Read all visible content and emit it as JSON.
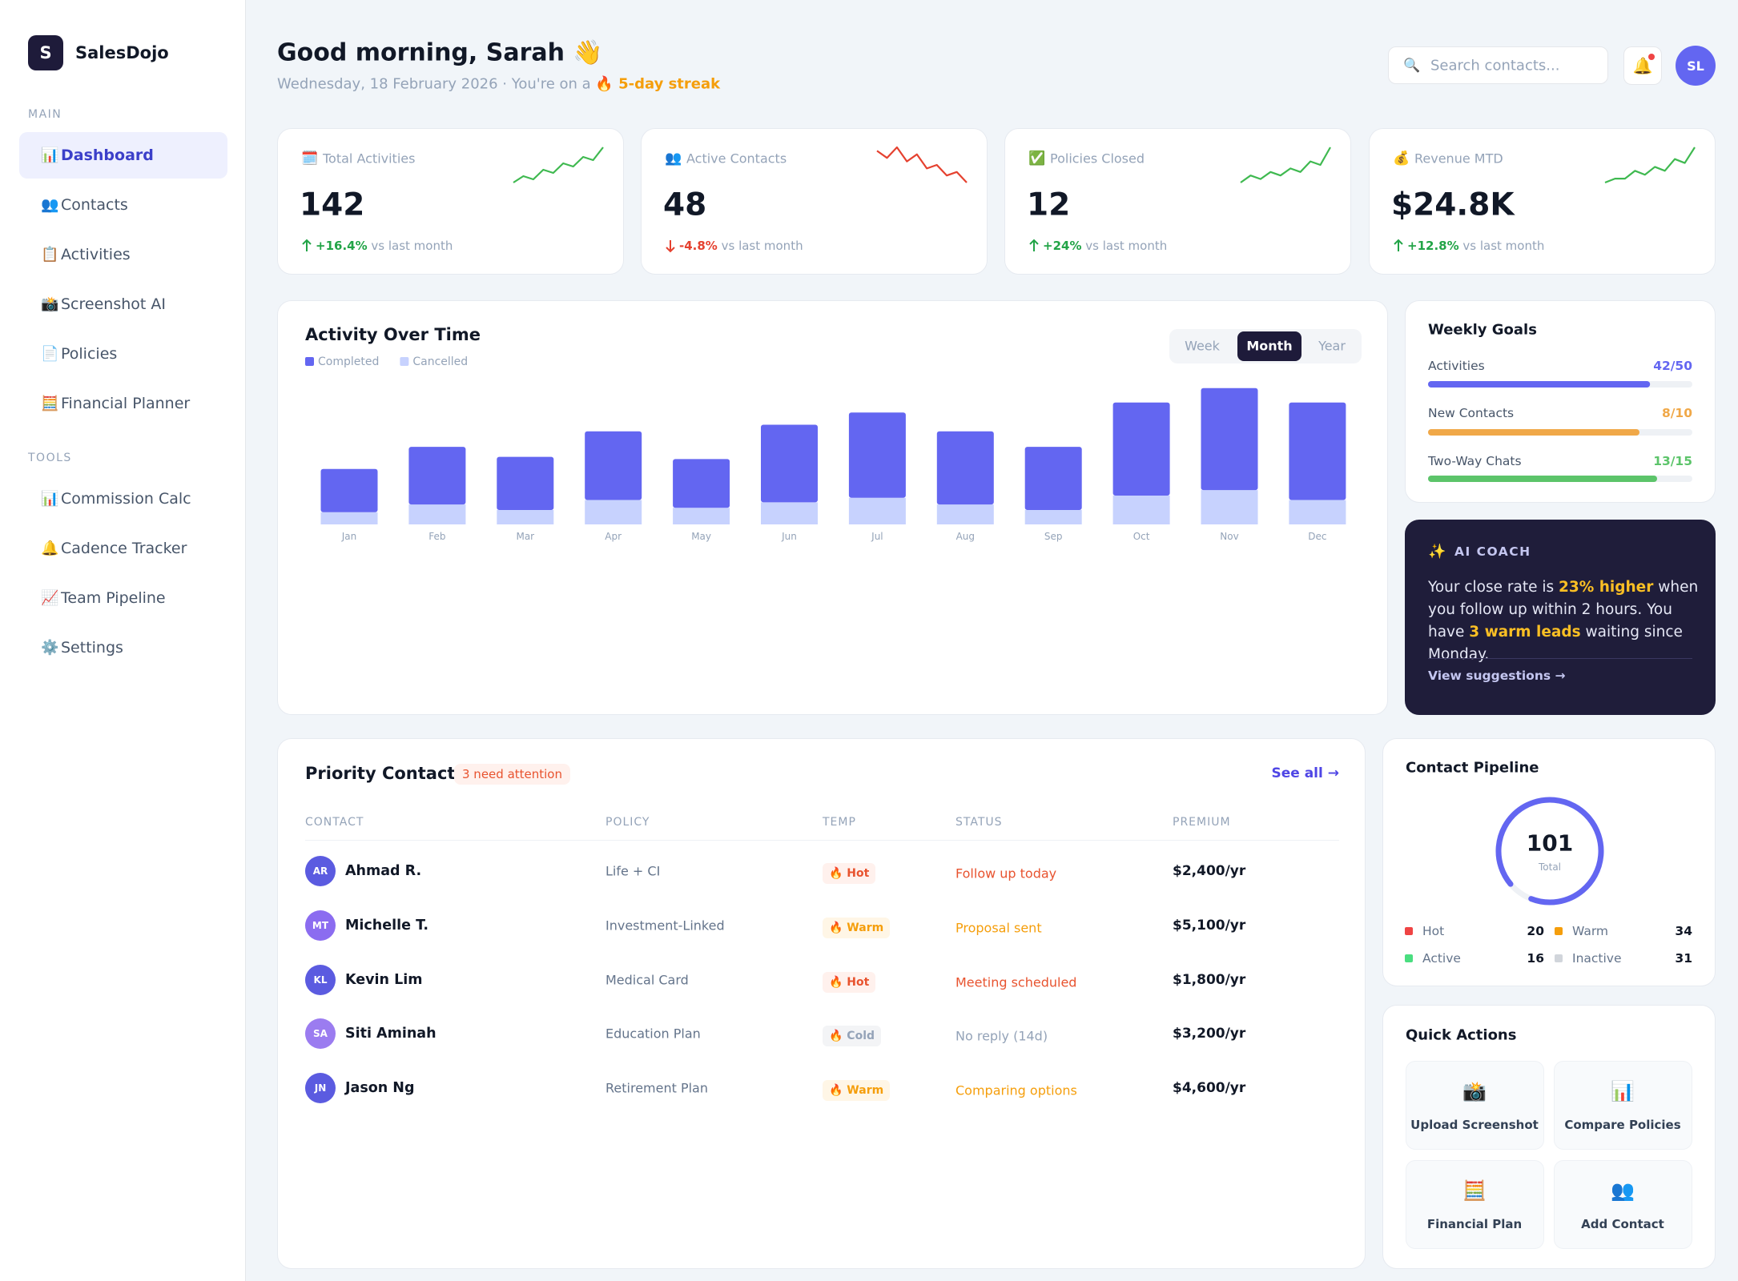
{
  "sidebar": {
    "logo_letter": "S",
    "brand": "SalesDojo",
    "sections": [
      {
        "title": "MAIN",
        "items": [
          {
            "icon": "📊",
            "label": "Dashboard",
            "active": true
          },
          {
            "icon": "👥",
            "label": "Contacts"
          },
          {
            "icon": "📋",
            "label": "Activities"
          },
          {
            "icon": "📸",
            "label": "Screenshot AI"
          },
          {
            "icon": "📄",
            "label": "Policies"
          },
          {
            "icon": "🧮",
            "label": "Financial Planner"
          }
        ]
      },
      {
        "title": "TOOLS",
        "items": [
          {
            "icon": "📊",
            "label": "Commission Calc"
          },
          {
            "icon": "🔔",
            "label": "Cadence Tracker"
          },
          {
            "icon": "📈",
            "label": "Team Pipeline"
          },
          {
            "icon": "⚙️",
            "label": "Settings"
          }
        ]
      }
    ]
  },
  "header": {
    "greeting": "Good morning, Sarah 👋",
    "date": "Wednesday, 18 February 2026 · You're on a",
    "streak": "🔥 5-day streak",
    "search_icon": "🔍",
    "search_placeholder": "Search contacts...",
    "bell": "🔔",
    "avatar": "SL"
  },
  "kpis": [
    {
      "icon": "🗓️",
      "label": "Total Activities",
      "value": "142",
      "change": "+16.4%",
      "note": "vs last month",
      "trend": "up",
      "sparkline": [
        3,
        5,
        4,
        7,
        6,
        9,
        8,
        11,
        10,
        14
      ]
    },
    {
      "icon": "👥",
      "label": "Active Contacts",
      "value": "48",
      "change": "-4.8%",
      "note": "vs last month",
      "trend": "down",
      "sparkline": [
        12,
        10,
        13,
        9,
        11,
        7,
        8,
        5,
        6,
        3
      ]
    },
    {
      "icon": "✅",
      "label": "Policies Closed",
      "value": "12",
      "change": "+24%",
      "note": "vs last month",
      "trend": "up",
      "sparkline": [
        2,
        4,
        3,
        5,
        4,
        6,
        5,
        8,
        7,
        12
      ]
    },
    {
      "icon": "💰",
      "label": "Revenue MTD",
      "value": "$24.8K",
      "change": "+12.8%",
      "note": "vs last month",
      "trend": "up",
      "sparkline": [
        3,
        4,
        4,
        6,
        5,
        7,
        6,
        9,
        8,
        12
      ]
    }
  ],
  "chart_data": {
    "type": "bar",
    "stacked": true,
    "title": "Activity Over Time",
    "periods": [
      "Week",
      "Month",
      "Year"
    ],
    "active_period": 1,
    "categories": [
      "Jan",
      "Feb",
      "Mar",
      "Apr",
      "May",
      "Jun",
      "Jul",
      "Aug",
      "Sep",
      "Oct",
      "Nov",
      "Dec"
    ],
    "series": [
      {
        "name": "Completed",
        "color": "#6366f1",
        "values": [
          39,
          52,
          48,
          62,
          44,
          70,
          77,
          66,
          57,
          84,
          92,
          88
        ]
      },
      {
        "name": "Cancelled",
        "color": "#c7d2fe",
        "values": [
          11,
          18,
          13,
          22,
          15,
          20,
          24,
          18,
          13,
          26,
          31,
          22
        ]
      }
    ]
  },
  "weekly_goals": {
    "title": "Weekly Goals",
    "goals": [
      {
        "label": "Activities",
        "progress": "42/50",
        "value": 42,
        "target": 50,
        "color": "#6366f1"
      },
      {
        "label": "New Contacts",
        "progress": "8/10",
        "value": 8,
        "target": 10,
        "color": "#f0a848"
      },
      {
        "label": "Two-Way Chats",
        "progress": "13/15",
        "value": 13,
        "target": 15,
        "color": "#5cc46a"
      }
    ]
  },
  "ai_coach": {
    "icon": "✨",
    "title": "AI COACH",
    "message": [
      {
        "text": "Your close rate is "
      },
      {
        "text": "23% higher",
        "highlight": true
      },
      {
        "text": " when you follow up within 2 hours. You have "
      },
      {
        "text": "3 warm leads",
        "highlight": true
      },
      {
        "text": " waiting since Monday."
      }
    ],
    "link": "View suggestions →"
  },
  "priority_contacts": {
    "title": "Priority Contacts",
    "badge": "3 need attention",
    "see_all": "See all →",
    "columns": [
      "CONTACT",
      "POLICY",
      "TEMP",
      "STATUS",
      "PREMIUM"
    ],
    "rows": [
      {
        "initials": "AR",
        "name": "Ahmad R.",
        "policy": "Life + CI",
        "temp": "🔥 Hot",
        "level": "hot",
        "status": "Follow up today",
        "premium": "$2,400/yr"
      },
      {
        "initials": "MT",
        "name": "Michelle T.",
        "policy": "Investment-Linked",
        "temp": "🔥 Warm",
        "level": "warm",
        "status": "Proposal sent",
        "premium": "$5,100/yr"
      },
      {
        "initials": "KL",
        "name": "Kevin Lim",
        "policy": "Medical Card",
        "temp": "🔥 Hot",
        "level": "hot",
        "status": "Meeting scheduled",
        "premium": "$1,800/yr"
      },
      {
        "initials": "SA",
        "name": "Siti Aminah",
        "policy": "Education Plan",
        "temp": "🔥 Cold",
        "level": "cold",
        "status": "No reply (14d)",
        "premium": "$3,200/yr"
      },
      {
        "initials": "JN",
        "name": "Jason Ng",
        "policy": "Retirement Plan",
        "temp": "🔥 Warm",
        "level": "warm",
        "status": "Comparing options",
        "premium": "$4,600/yr"
      }
    ]
  },
  "pipeline": {
    "title": "Contact Pipeline",
    "total": 101,
    "total_label": "Total",
    "segments": [
      {
        "name": "Hot",
        "value": 20,
        "color": "#ef4444"
      },
      {
        "name": "Warm",
        "value": 34,
        "color": "#f59e0b"
      },
      {
        "name": "Active",
        "value": 16,
        "color": "#4ade80"
      },
      {
        "name": "Inactive",
        "value": 31,
        "color": "#d1d5db"
      }
    ]
  },
  "quick_actions": {
    "title": "Quick Actions",
    "actions": [
      {
        "icon": "📸",
        "label": "Upload Screenshot"
      },
      {
        "icon": "📊",
        "label": "Compare Policies"
      },
      {
        "icon": "🧮",
        "label": "Financial Plan"
      },
      {
        "icon": "👥",
        "label": "Add Contact"
      }
    ]
  }
}
